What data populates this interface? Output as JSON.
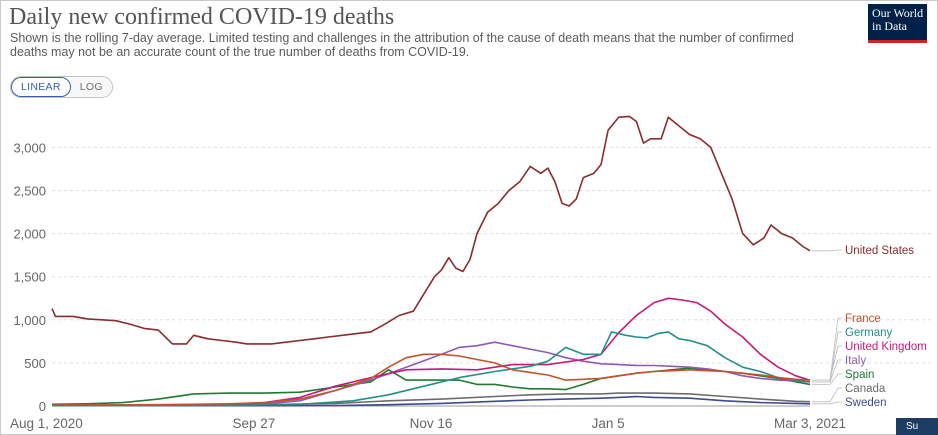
{
  "header": {
    "title": "Daily new confirmed COVID-19 deaths",
    "subtitle": "Shown is the rolling 7-day average. Limited testing and challenges in the attribution of the cause of death means that the number of confirmed deaths may not be an accurate count of the true number of deaths from COVID-19.",
    "logo_line1": "Our World",
    "logo_line2": "in Data"
  },
  "controls": {
    "linear_label": "LINEAR",
    "log_label": "LOG"
  },
  "corner_label": "Su",
  "chart_data": {
    "type": "line",
    "title": "Daily new confirmed COVID-19 deaths",
    "xlabel": "",
    "ylabel": "",
    "x_ticks": [
      "Aug 1, 2020",
      "Sep 27",
      "Nov 16",
      "Jan 5",
      "Mar 3, 2021"
    ],
    "x_tick_days": [
      0,
      57,
      107,
      157,
      214
    ],
    "x_range_days": [
      0,
      214
    ],
    "y_ticks": [
      0,
      500,
      1000,
      1500,
      2000,
      2500,
      3000
    ],
    "y_tick_labels": [
      "0",
      "500",
      "1,000",
      "1,500",
      "2,000",
      "2,500",
      "3,000"
    ],
    "ylim": [
      0,
      3400
    ],
    "grid": "horizontal dashed",
    "legend": "end-of-line labels on right",
    "series": [
      {
        "name": "United States",
        "color": "#8b2c2c",
        "points": [
          [
            0,
            1130
          ],
          [
            1,
            1040
          ],
          [
            3,
            1040
          ],
          [
            6,
            1040
          ],
          [
            10,
            1010
          ],
          [
            14,
            1000
          ],
          [
            18,
            990
          ],
          [
            22,
            950
          ],
          [
            26,
            900
          ],
          [
            30,
            880
          ],
          [
            34,
            720
          ],
          [
            38,
            720
          ],
          [
            40,
            820
          ],
          [
            44,
            780
          ],
          [
            48,
            760
          ],
          [
            52,
            740
          ],
          [
            55,
            720
          ],
          [
            58,
            720
          ],
          [
            62,
            720
          ],
          [
            66,
            740
          ],
          [
            70,
            760
          ],
          [
            74,
            780
          ],
          [
            78,
            800
          ],
          [
            82,
            820
          ],
          [
            86,
            840
          ],
          [
            90,
            860
          ],
          [
            94,
            950
          ],
          [
            98,
            1050
          ],
          [
            102,
            1100
          ],
          [
            105,
            1300
          ],
          [
            108,
            1500
          ],
          [
            110,
            1580
          ],
          [
            112,
            1720
          ],
          [
            114,
            1600
          ],
          [
            116,
            1560
          ],
          [
            118,
            1700
          ],
          [
            120,
            2000
          ],
          [
            123,
            2250
          ],
          [
            126,
            2350
          ],
          [
            129,
            2500
          ],
          [
            132,
            2600
          ],
          [
            135,
            2780
          ],
          [
            138,
            2700
          ],
          [
            140,
            2760
          ],
          [
            142,
            2600
          ],
          [
            144,
            2350
          ],
          [
            146,
            2320
          ],
          [
            148,
            2400
          ],
          [
            150,
            2650
          ],
          [
            153,
            2700
          ],
          [
            155,
            2800
          ],
          [
            157,
            3200
          ],
          [
            160,
            3350
          ],
          [
            163,
            3360
          ],
          [
            165,
            3300
          ],
          [
            167,
            3050
          ],
          [
            169,
            3100
          ],
          [
            172,
            3100
          ],
          [
            174,
            3350
          ],
          [
            177,
            3250
          ],
          [
            180,
            3150
          ],
          [
            183,
            3100
          ],
          [
            186,
            3000
          ],
          [
            189,
            2700
          ],
          [
            192,
            2400
          ],
          [
            195,
            2000
          ],
          [
            198,
            1870
          ],
          [
            201,
            1950
          ],
          [
            203,
            2100
          ],
          [
            206,
            2000
          ],
          [
            209,
            1950
          ],
          [
            212,
            1850
          ],
          [
            214,
            1800
          ]
        ]
      },
      {
        "name": "France",
        "color": "#c2532a",
        "points": [
          [
            0,
            10
          ],
          [
            30,
            15
          ],
          [
            50,
            25
          ],
          [
            60,
            40
          ],
          [
            70,
            80
          ],
          [
            80,
            180
          ],
          [
            90,
            320
          ],
          [
            95,
            450
          ],
          [
            100,
            560
          ],
          [
            105,
            600
          ],
          [
            110,
            600
          ],
          [
            115,
            580
          ],
          [
            120,
            540
          ],
          [
            125,
            500
          ],
          [
            130,
            420
          ],
          [
            135,
            390
          ],
          [
            140,
            360
          ],
          [
            145,
            300
          ],
          [
            150,
            310
          ],
          [
            155,
            320
          ],
          [
            160,
            350
          ],
          [
            165,
            380
          ],
          [
            170,
            400
          ],
          [
            175,
            410
          ],
          [
            180,
            420
          ],
          [
            185,
            410
          ],
          [
            190,
            400
          ],
          [
            195,
            380
          ],
          [
            200,
            360
          ],
          [
            205,
            330
          ],
          [
            210,
            310
          ],
          [
            214,
            300
          ]
        ]
      },
      {
        "name": "Germany",
        "color": "#22908a",
        "points": [
          [
            0,
            5
          ],
          [
            50,
            8
          ],
          [
            70,
            20
          ],
          [
            85,
            60
          ],
          [
            95,
            130
          ],
          [
            105,
            230
          ],
          [
            115,
            330
          ],
          [
            125,
            400
          ],
          [
            135,
            460
          ],
          [
            140,
            520
          ],
          [
            145,
            680
          ],
          [
            150,
            600
          ],
          [
            155,
            600
          ],
          [
            158,
            860
          ],
          [
            162,
            820
          ],
          [
            165,
            800
          ],
          [
            168,
            790
          ],
          [
            171,
            840
          ],
          [
            174,
            860
          ],
          [
            177,
            780
          ],
          [
            180,
            760
          ],
          [
            185,
            700
          ],
          [
            190,
            560
          ],
          [
            195,
            450
          ],
          [
            200,
            400
          ],
          [
            205,
            330
          ],
          [
            210,
            300
          ],
          [
            214,
            280
          ]
        ]
      },
      {
        "name": "United Kingdom",
        "color": "#c61a78",
        "points": [
          [
            0,
            8
          ],
          [
            30,
            10
          ],
          [
            50,
            20
          ],
          [
            60,
            40
          ],
          [
            70,
            100
          ],
          [
            80,
            230
          ],
          [
            90,
            330
          ],
          [
            100,
            420
          ],
          [
            110,
            430
          ],
          [
            120,
            420
          ],
          [
            130,
            480
          ],
          [
            140,
            480
          ],
          [
            150,
            540
          ],
          [
            155,
            600
          ],
          [
            160,
            850
          ],
          [
            165,
            1050
          ],
          [
            170,
            1200
          ],
          [
            174,
            1250
          ],
          [
            178,
            1230
          ],
          [
            182,
            1200
          ],
          [
            186,
            1100
          ],
          [
            190,
            950
          ],
          [
            195,
            800
          ],
          [
            200,
            600
          ],
          [
            205,
            450
          ],
          [
            210,
            350
          ],
          [
            214,
            300
          ]
        ]
      },
      {
        "name": "Italy",
        "color": "#8f5ab0",
        "points": [
          [
            0,
            8
          ],
          [
            30,
            10
          ],
          [
            50,
            15
          ],
          [
            60,
            25
          ],
          [
            70,
            60
          ],
          [
            80,
            180
          ],
          [
            90,
            300
          ],
          [
            100,
            450
          ],
          [
            110,
            600
          ],
          [
            115,
            680
          ],
          [
            120,
            700
          ],
          [
            125,
            740
          ],
          [
            130,
            700
          ],
          [
            135,
            660
          ],
          [
            140,
            620
          ],
          [
            145,
            560
          ],
          [
            150,
            520
          ],
          [
            155,
            490
          ],
          [
            160,
            480
          ],
          [
            165,
            470
          ],
          [
            170,
            470
          ],
          [
            175,
            460
          ],
          [
            180,
            450
          ],
          [
            185,
            430
          ],
          [
            190,
            400
          ],
          [
            195,
            350
          ],
          [
            200,
            320
          ],
          [
            205,
            300
          ],
          [
            210,
            290
          ],
          [
            214,
            280
          ]
        ]
      },
      {
        "name": "Spain",
        "color": "#1f7a33",
        "points": [
          [
            0,
            20
          ],
          [
            10,
            25
          ],
          [
            20,
            40
          ],
          [
            30,
            80
          ],
          [
            40,
            140
          ],
          [
            50,
            150
          ],
          [
            60,
            150
          ],
          [
            70,
            160
          ],
          [
            80,
            220
          ],
          [
            90,
            280
          ],
          [
            95,
            420
          ],
          [
            100,
            300
          ],
          [
            105,
            300
          ],
          [
            110,
            300
          ],
          [
            115,
            300
          ],
          [
            120,
            250
          ],
          [
            125,
            250
          ],
          [
            130,
            220
          ],
          [
            135,
            200
          ],
          [
            140,
            200
          ],
          [
            145,
            190
          ],
          [
            150,
            250
          ],
          [
            155,
            320
          ],
          [
            160,
            350
          ],
          [
            165,
            380
          ],
          [
            170,
            400
          ],
          [
            175,
            420
          ],
          [
            180,
            440
          ],
          [
            185,
            420
          ],
          [
            190,
            400
          ],
          [
            195,
            380
          ],
          [
            200,
            350
          ],
          [
            205,
            320
          ],
          [
            210,
            280
          ],
          [
            214,
            250
          ]
        ]
      },
      {
        "name": "Canada",
        "color": "#6c6c6c",
        "points": [
          [
            0,
            5
          ],
          [
            30,
            6
          ],
          [
            60,
            15
          ],
          [
            80,
            30
          ],
          [
            95,
            60
          ],
          [
            110,
            80
          ],
          [
            125,
            110
          ],
          [
            135,
            130
          ],
          [
            145,
            140
          ],
          [
            155,
            140
          ],
          [
            160,
            150
          ],
          [
            170,
            150
          ],
          [
            180,
            140
          ],
          [
            190,
            110
          ],
          [
            200,
            80
          ],
          [
            210,
            55
          ],
          [
            214,
            50
          ]
        ]
      },
      {
        "name": "Sweden",
        "color": "#3b4c8c",
        "points": [
          [
            0,
            4
          ],
          [
            30,
            3
          ],
          [
            60,
            3
          ],
          [
            80,
            5
          ],
          [
            95,
            15
          ],
          [
            110,
            30
          ],
          [
            125,
            55
          ],
          [
            135,
            70
          ],
          [
            145,
            80
          ],
          [
            155,
            90
          ],
          [
            160,
            100
          ],
          [
            165,
            110
          ],
          [
            170,
            100
          ],
          [
            180,
            90
          ],
          [
            190,
            60
          ],
          [
            200,
            40
          ],
          [
            210,
            30
          ],
          [
            214,
            25
          ]
        ]
      }
    ]
  }
}
